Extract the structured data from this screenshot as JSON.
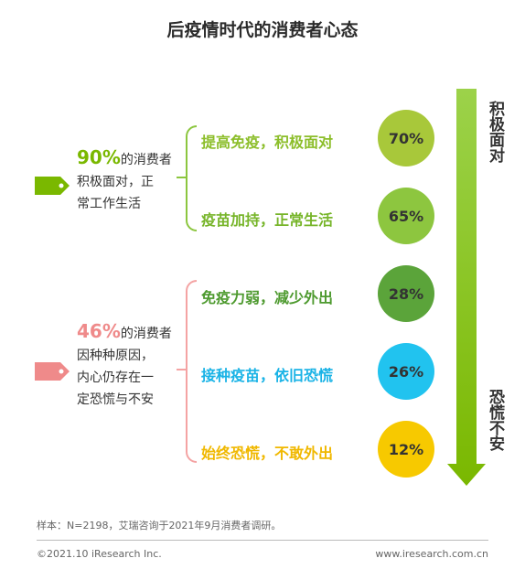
{
  "title": "后疫情时代的消费者心态",
  "colors": {
    "green_accent": "#7ab800",
    "red_accent": "#ef8a8a",
    "bracket_green": "#8cc63f",
    "bracket_red": "#f4a3a3",
    "arrow": "#8cc63f"
  },
  "groups": [
    {
      "pct": "90%",
      "text_lines": [
        "的消费者",
        "积极面对，正",
        "常工作生活"
      ],
      "color": "#7ab800",
      "tag_icon": "tag-icon"
    },
    {
      "pct": "46%",
      "text_lines": [
        "的消费者",
        "因种种原因，",
        "内心仍存在一",
        "定恐慌与不安"
      ],
      "color": "#ef8a8a",
      "tag_icon": "tag-icon"
    }
  ],
  "arrow": {
    "top_label": "积极面对",
    "bottom_label": "恐慌不安"
  },
  "chart_data": {
    "type": "bar",
    "categories": [
      "提高免疫，积极面对",
      "疫苗加持，正常生活",
      "免疫力弱，减少外出",
      "接种疫苗，依旧恐慌",
      "始终恐慌，不敢外出"
    ],
    "values": [
      70,
      65,
      28,
      26,
      12
    ],
    "value_labels": [
      "70%",
      "65%",
      "28%",
      "26%",
      "12%"
    ],
    "colors": [
      "#a8c83a",
      "#8dc63f",
      "#5ba43a",
      "#21c3ef",
      "#f7c900"
    ],
    "label_colors": [
      "#8cbe2a",
      "#77b52a",
      "#4e9a2f",
      "#1ab3e6",
      "#f0b800"
    ],
    "title": "后疫情时代的消费者心态"
  },
  "note": "样本：N=2198，艾瑞咨询于2021年9月消费者调研。",
  "footer": {
    "copyright": "©2021.10 iResearch Inc.",
    "website": "www.iresearch.com.cn"
  }
}
